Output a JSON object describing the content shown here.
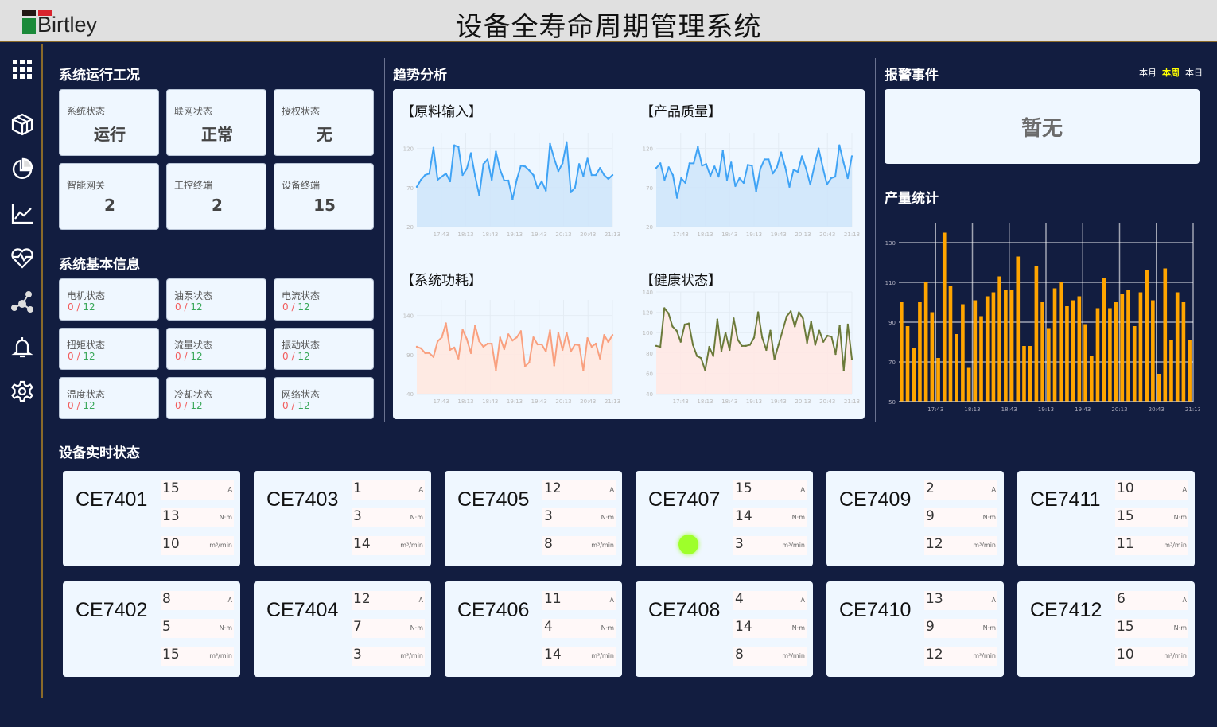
{
  "header": {
    "logo_text": "Birtley",
    "title": "设备全寿命周期管理系统"
  },
  "sidebar": {
    "items": [
      {
        "icon": "grid-icon"
      },
      {
        "icon": "cube-icon"
      },
      {
        "icon": "pie-chart-icon"
      },
      {
        "icon": "line-chart-icon"
      },
      {
        "icon": "heartbeat-icon"
      },
      {
        "icon": "network-icon"
      },
      {
        "icon": "bell-icon"
      },
      {
        "icon": "gear-icon"
      }
    ]
  },
  "system_status": {
    "title": "系统运行工况",
    "cards": [
      {
        "label": "系统状态",
        "value": "运行"
      },
      {
        "label": "联网状态",
        "value": "正常"
      },
      {
        "label": "授权状态",
        "value": "无"
      },
      {
        "label": "智能网关",
        "value": "2"
      },
      {
        "label": "工控终端",
        "value": "2"
      },
      {
        "label": "设备终端",
        "value": "15"
      }
    ]
  },
  "basic_info": {
    "title": "系统基本信息",
    "cards": [
      {
        "label": "电机状态",
        "bad": "0",
        "sep": "/",
        "total": "12"
      },
      {
        "label": "油泵状态",
        "bad": "0",
        "sep": "/",
        "total": "12"
      },
      {
        "label": "电流状态",
        "bad": "0",
        "sep": "/",
        "total": "12"
      },
      {
        "label": "扭矩状态",
        "bad": "0",
        "sep": "/",
        "total": "12"
      },
      {
        "label": "流量状态",
        "bad": "0",
        "sep": "/",
        "total": "12"
      },
      {
        "label": "振动状态",
        "bad": "0",
        "sep": "/",
        "total": "12"
      },
      {
        "label": "温度状态",
        "bad": "0",
        "sep": "/",
        "total": "12"
      },
      {
        "label": "冷却状态",
        "bad": "0",
        "sep": "/",
        "total": "12"
      },
      {
        "label": "网络状态",
        "bad": "0",
        "sep": "/",
        "total": "12"
      }
    ]
  },
  "trend": {
    "title": "趋势分析"
  },
  "alarm": {
    "title": "报警事件",
    "tabs": [
      {
        "label": "本月",
        "active": false
      },
      {
        "label": "本周",
        "active": true
      },
      {
        "label": "本日",
        "active": false
      }
    ],
    "empty_text": "暂无"
  },
  "production": {
    "title": "产量统计"
  },
  "colors": {
    "bg": "#121d40",
    "card": "#eff7ff",
    "blue_line": "#3fa3f5",
    "orange_line": "#f9a07f",
    "olive_line": "#6b7a3a",
    "bar": "#ffa500",
    "active_tab": "#ffff00",
    "bad": "#f25d5d",
    "ok": "#3aa85a",
    "online_dot": "#9eff2a"
  },
  "chart_data": [
    {
      "type": "area",
      "title": "【原料输入】",
      "ylim": [
        20,
        140
      ],
      "yticks": [
        20,
        70,
        120
      ],
      "xticks": [
        "17:43",
        "18:13",
        "18:43",
        "19:13",
        "19:43",
        "20:13",
        "20:43",
        "21:13"
      ],
      "grid": true,
      "values": [
        71,
        80,
        86,
        88,
        121,
        80,
        84,
        88,
        78,
        124,
        122,
        86,
        94,
        114,
        85,
        60,
        100,
        106,
        80,
        116,
        93,
        79,
        79,
        55,
        80,
        98,
        97,
        92,
        86,
        69,
        78,
        66,
        126,
        107,
        91,
        101,
        128,
        64,
        70,
        100,
        85,
        107,
        86,
        86,
        95,
        86,
        81,
        86
      ]
    },
    {
      "type": "area",
      "title": "【产品质量】",
      "ylim": [
        20,
        140
      ],
      "yticks": [
        20,
        70,
        120
      ],
      "xticks": [
        "17:43",
        "18:13",
        "18:43",
        "19:13",
        "19:43",
        "20:13",
        "20:43",
        "21:13"
      ],
      "grid": true,
      "values": [
        95,
        101,
        80,
        96,
        86,
        57,
        82,
        76,
        101,
        101,
        122,
        98,
        100,
        85,
        97,
        84,
        117,
        80,
        102,
        72,
        82,
        76,
        99,
        98,
        65,
        94,
        106,
        106,
        88,
        96,
        115,
        96,
        71,
        93,
        90,
        110,
        94,
        74,
        98,
        120,
        96,
        74,
        82,
        84,
        124,
        102,
        82,
        110
      ]
    },
    {
      "type": "area",
      "title": "【系统功耗】",
      "ylim": [
        40,
        160
      ],
      "yticks": [
        40,
        90,
        140
      ],
      "xticks": [
        "17:43",
        "18:13",
        "18:43",
        "19:13",
        "19:43",
        "20:13",
        "20:43",
        "21:13"
      ],
      "grid": true,
      "values": [
        100,
        98,
        92,
        92,
        87,
        107,
        112,
        130,
        96,
        99,
        85,
        122,
        110,
        92,
        127,
        107,
        100,
        104,
        104,
        70,
        112,
        97,
        116,
        108,
        112,
        120,
        75,
        80,
        112,
        103,
        103,
        94,
        121,
        76,
        118,
        96,
        118,
        94,
        103,
        102,
        70,
        111,
        100,
        104,
        85,
        115,
        106,
        115
      ]
    },
    {
      "type": "area",
      "title": "【健康状态】",
      "ylim": [
        40,
        140
      ],
      "yticks": [
        40,
        60,
        80,
        100,
        120,
        140
      ],
      "xticks": [
        "17:43",
        "18:13",
        "18:43",
        "19:13",
        "19:43",
        "20:13",
        "20:43",
        "21:13"
      ],
      "grid": true,
      "values": [
        87,
        86,
        124,
        119,
        106,
        102,
        91,
        108,
        109,
        88,
        77,
        75,
        63,
        86,
        77,
        113,
        82,
        100,
        83,
        114,
        93,
        87,
        87,
        88,
        95,
        120,
        95,
        83,
        102,
        74,
        88,
        102,
        116,
        121,
        106,
        120,
        114,
        90,
        111,
        88,
        102,
        91,
        97,
        96,
        79,
        107,
        63,
        108,
        74
      ]
    },
    {
      "type": "bar",
      "title": "",
      "ylim": [
        50,
        140
      ],
      "yticks": [
        50,
        70,
        90,
        110,
        130
      ],
      "xticks": [
        "17:43",
        "18:13",
        "18:43",
        "19:13",
        "19:43",
        "20:13",
        "20:43",
        "21:13"
      ],
      "grid": true,
      "values": [
        100,
        88,
        77,
        100,
        110,
        95,
        72,
        135,
        108,
        84,
        99,
        67,
        101,
        93,
        103,
        105,
        113,
        106,
        106,
        123,
        78,
        78,
        118,
        100,
        87,
        107,
        110,
        98,
        101,
        103,
        89,
        73,
        97,
        112,
        97,
        100,
        104,
        106,
        88,
        105,
        116,
        101,
        64,
        117,
        81,
        105,
        100,
        81
      ]
    }
  ],
  "devices": {
    "title": "设备实时状态",
    "units": [
      "A",
      "N·m",
      "m³/min"
    ],
    "items": [
      {
        "id": "CE7401",
        "values": [
          "15",
          "13",
          "10"
        ],
        "online": false
      },
      {
        "id": "CE7403",
        "values": [
          "1",
          "3",
          "14"
        ],
        "online": false
      },
      {
        "id": "CE7405",
        "values": [
          "12",
          "3",
          "8"
        ],
        "online": false
      },
      {
        "id": "CE7407",
        "values": [
          "15",
          "14",
          "3"
        ],
        "online": true
      },
      {
        "id": "CE7409",
        "values": [
          "2",
          "9",
          "12"
        ],
        "online": false
      },
      {
        "id": "CE7411",
        "values": [
          "10",
          "15",
          "11"
        ],
        "online": false
      },
      {
        "id": "CE7402",
        "values": [
          "8",
          "5",
          "15"
        ],
        "online": false
      },
      {
        "id": "CE7404",
        "values": [
          "12",
          "7",
          "3"
        ],
        "online": false
      },
      {
        "id": "CE7406",
        "values": [
          "11",
          "4",
          "14"
        ],
        "online": false
      },
      {
        "id": "CE7408",
        "values": [
          "4",
          "14",
          "8"
        ],
        "online": false
      },
      {
        "id": "CE7410",
        "values": [
          "13",
          "9",
          "12"
        ],
        "online": false
      },
      {
        "id": "CE7412",
        "values": [
          "6",
          "15",
          "10"
        ],
        "online": false
      }
    ]
  }
}
